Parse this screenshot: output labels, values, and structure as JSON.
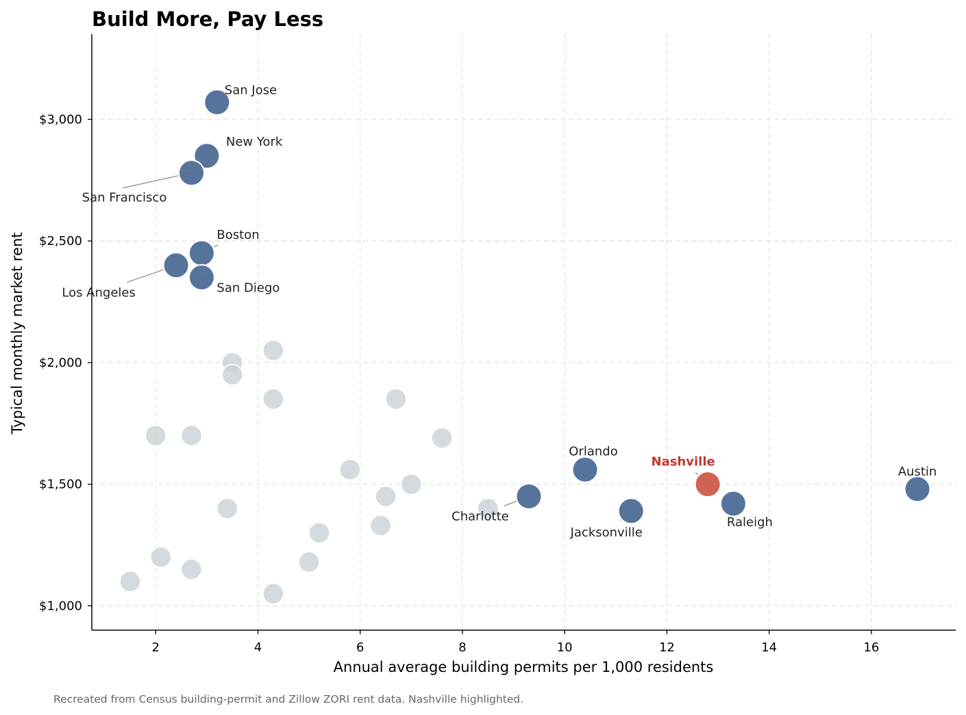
{
  "chart_data": {
    "type": "scatter",
    "title": "Build More, Pay Less",
    "xlabel": "Annual average building permits per 1,000 residents",
    "ylabel": "Typical monthly market rent",
    "xlim": [
      0.75,
      17.65
    ],
    "ylim": [
      900,
      3350
    ],
    "x_ticks": [
      2,
      4,
      6,
      8,
      10,
      12,
      14,
      16
    ],
    "y_ticks": [
      1000,
      1500,
      2000,
      2500,
      3000
    ],
    "y_tick_labels": [
      "$1,000",
      "$1,500",
      "$2,000",
      "$2,500",
      "$3,000"
    ],
    "grid": true,
    "colors": {
      "labeled": "#4d6d96",
      "highlight": "#cf5b4c",
      "other": "#cdd3d8",
      "highlight_text": "#c0392b"
    },
    "background_points": [
      {
        "x": 4.3,
        "y": 2050
      },
      {
        "x": 3.5,
        "y": 2000
      },
      {
        "x": 3.5,
        "y": 1950
      },
      {
        "x": 4.3,
        "y": 1850
      },
      {
        "x": 6.7,
        "y": 1850
      },
      {
        "x": 2.0,
        "y": 1700
      },
      {
        "x": 2.7,
        "y": 1700
      },
      {
        "x": 7.6,
        "y": 1690
      },
      {
        "x": 5.8,
        "y": 1560
      },
      {
        "x": 7.0,
        "y": 1500
      },
      {
        "x": 6.5,
        "y": 1450
      },
      {
        "x": 8.5,
        "y": 1400
      },
      {
        "x": 3.4,
        "y": 1400
      },
      {
        "x": 6.4,
        "y": 1330
      },
      {
        "x": 5.2,
        "y": 1300
      },
      {
        "x": 2.1,
        "y": 1200
      },
      {
        "x": 5.0,
        "y": 1180
      },
      {
        "x": 2.7,
        "y": 1150
      },
      {
        "x": 1.5,
        "y": 1100
      },
      {
        "x": 4.3,
        "y": 1050
      }
    ],
    "labeled_points": [
      {
        "name": "San Jose",
        "x": 3.2,
        "y": 3070
      },
      {
        "name": "New York",
        "x": 3.0,
        "y": 2850
      },
      {
        "name": "San Francisco",
        "x": 2.7,
        "y": 2780
      },
      {
        "name": "Boston",
        "x": 2.9,
        "y": 2450
      },
      {
        "name": "Los Angeles",
        "x": 2.4,
        "y": 2400
      },
      {
        "name": "San Diego",
        "x": 2.9,
        "y": 2350
      },
      {
        "name": "Orlando",
        "x": 10.4,
        "y": 1560
      },
      {
        "name": "Nashville",
        "x": 12.8,
        "y": 1500,
        "highlight": true
      },
      {
        "name": "Austin",
        "x": 16.9,
        "y": 1480
      },
      {
        "name": "Charlotte",
        "x": 9.3,
        "y": 1450
      },
      {
        "name": "Raleigh",
        "x": 13.3,
        "y": 1420
      },
      {
        "name": "Jacksonville",
        "x": 11.3,
        "y": 1390
      }
    ],
    "caption": "Recreated from Census building-permit and Zillow ZORI rent data. Nashville highlighted."
  }
}
